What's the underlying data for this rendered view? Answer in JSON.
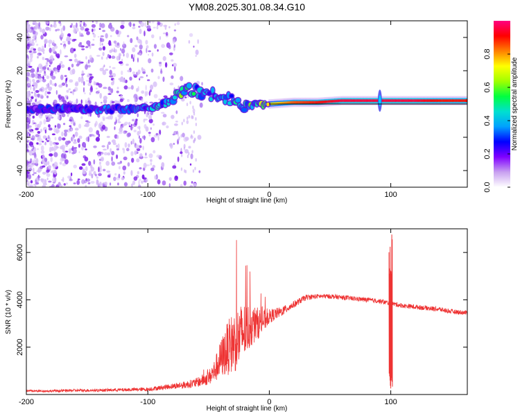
{
  "title": "YM08.2025.301.08.34.G10",
  "chart_data": [
    {
      "type": "heatmap",
      "name": "spectrogram",
      "xlabel": "Height of straight line (km)",
      "ylabel": "Frequency (Hz)",
      "xlim": [
        -200,
        163
      ],
      "ylim": [
        -50,
        50
      ],
      "xticks": [
        -200,
        -100,
        0,
        100
      ],
      "yticks": [
        -40,
        -20,
        0,
        20,
        40
      ],
      "colorbar": {
        "label": "Normalized spectral amplitude",
        "range": [
          0,
          1
        ],
        "ticks": [
          0.0,
          0.2,
          0.4,
          0.6,
          0.8
        ],
        "colors": [
          "#ffffff",
          "#c8a0f0",
          "#8000ff",
          "#0000ff",
          "#00a0ff",
          "#00e0d0",
          "#00ff40",
          "#a0ff00",
          "#ffff00",
          "#ff8000",
          "#ff0000",
          "#ff0080"
        ]
      },
      "ridge": {
        "x": [
          -200,
          -180,
          -160,
          -140,
          -120,
          -100,
          -90,
          -80,
          -70,
          -60,
          -50,
          -40,
          -30,
          -20,
          -10,
          0,
          20,
          40,
          60,
          80,
          100,
          120,
          140,
          163
        ],
        "freq": [
          -3,
          -3,
          -3,
          -3,
          -3,
          -2,
          -1,
          3,
          8,
          8,
          6,
          5,
          2,
          -1,
          0,
          0,
          1,
          1,
          2,
          2,
          2,
          2,
          2,
          2
        ],
        "amplitude": [
          0.25,
          0.25,
          0.3,
          0.3,
          0.3,
          0.35,
          0.4,
          0.45,
          0.5,
          0.4,
          0.35,
          0.35,
          0.4,
          0.45,
          0.55,
          0.7,
          0.85,
          0.9,
          0.95,
          0.95,
          0.95,
          0.95,
          0.9,
          0.9
        ]
      }
    },
    {
      "type": "line",
      "name": "snr",
      "xlabel": "Height of straight line (km)",
      "ylabel": "SNR (10 * v/v)",
      "xlim": [
        -200,
        163
      ],
      "ylim": [
        0,
        7000
      ],
      "xticks": [
        -200,
        -100,
        0,
        100
      ],
      "yticks": [
        2000,
        4000,
        6000
      ],
      "series": [
        {
          "name": "SNR",
          "color": "#ee3333",
          "x": [
            -200,
            -180,
            -160,
            -140,
            -120,
            -100,
            -80,
            -70,
            -60,
            -50,
            -45,
            -40,
            -35,
            -30,
            -25,
            -20,
            -15,
            -10,
            -5,
            0,
            10,
            20,
            30,
            40,
            50,
            60,
            70,
            80,
            90,
            95,
            100,
            105,
            110,
            120,
            130,
            140,
            150,
            163
          ],
          "values": [
            150,
            150,
            170,
            180,
            200,
            220,
            350,
            400,
            500,
            700,
            1000,
            1500,
            1900,
            2200,
            2400,
            2700,
            2900,
            3000,
            3100,
            3300,
            3500,
            3800,
            4100,
            4150,
            4150,
            4100,
            4050,
            4000,
            3950,
            3900,
            3850,
            3800,
            3750,
            3700,
            3650,
            3600,
            3500,
            3450
          ],
          "noise": [
            50,
            50,
            60,
            60,
            70,
            80,
            120,
            150,
            200,
            300,
            500,
            800,
            1100,
            1300,
            1400,
            1200,
            900,
            700,
            500,
            300,
            200,
            150,
            120,
            100,
            100,
            100,
            100,
            100,
            100,
            100,
            100,
            100,
            100,
            100,
            100,
            100,
            100,
            100
          ]
        }
      ],
      "spike": {
        "x": 100,
        "max": 7000,
        "min": 100
      }
    }
  ]
}
